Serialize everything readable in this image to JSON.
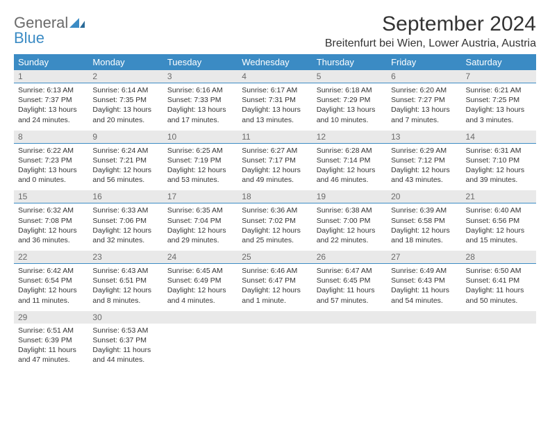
{
  "logo": {
    "part1": "General",
    "part2": "Blue"
  },
  "title": "September 2024",
  "subtitle": "Breitenfurt bei Wien, Lower Austria, Austria",
  "colors": {
    "header_bg": "#3b8bc4",
    "header_fg": "#ffffff",
    "daynum_bg": "#e9e9e9",
    "daynum_fg": "#6a6a6a",
    "row_border": "#3b8bc4",
    "body_text": "#333333",
    "page_bg": "#ffffff"
  },
  "typography": {
    "title_fontsize": 30,
    "subtitle_fontsize": 16,
    "dayhead_fontsize": 13,
    "daynum_fontsize": 12,
    "body_fontsize": 10.5
  },
  "day_headers": [
    "Sunday",
    "Monday",
    "Tuesday",
    "Wednesday",
    "Thursday",
    "Friday",
    "Saturday"
  ],
  "weeks": [
    {
      "nums": [
        "1",
        "2",
        "3",
        "4",
        "5",
        "6",
        "7"
      ],
      "cells": [
        {
          "sunrise": "Sunrise: 6:13 AM",
          "sunset": "Sunset: 7:37 PM",
          "dl1": "Daylight: 13 hours",
          "dl2": "and 24 minutes."
        },
        {
          "sunrise": "Sunrise: 6:14 AM",
          "sunset": "Sunset: 7:35 PM",
          "dl1": "Daylight: 13 hours",
          "dl2": "and 20 minutes."
        },
        {
          "sunrise": "Sunrise: 6:16 AM",
          "sunset": "Sunset: 7:33 PM",
          "dl1": "Daylight: 13 hours",
          "dl2": "and 17 minutes."
        },
        {
          "sunrise": "Sunrise: 6:17 AM",
          "sunset": "Sunset: 7:31 PM",
          "dl1": "Daylight: 13 hours",
          "dl2": "and 13 minutes."
        },
        {
          "sunrise": "Sunrise: 6:18 AM",
          "sunset": "Sunset: 7:29 PM",
          "dl1": "Daylight: 13 hours",
          "dl2": "and 10 minutes."
        },
        {
          "sunrise": "Sunrise: 6:20 AM",
          "sunset": "Sunset: 7:27 PM",
          "dl1": "Daylight: 13 hours",
          "dl2": "and 7 minutes."
        },
        {
          "sunrise": "Sunrise: 6:21 AM",
          "sunset": "Sunset: 7:25 PM",
          "dl1": "Daylight: 13 hours",
          "dl2": "and 3 minutes."
        }
      ]
    },
    {
      "nums": [
        "8",
        "9",
        "10",
        "11",
        "12",
        "13",
        "14"
      ],
      "cells": [
        {
          "sunrise": "Sunrise: 6:22 AM",
          "sunset": "Sunset: 7:23 PM",
          "dl1": "Daylight: 13 hours",
          "dl2": "and 0 minutes."
        },
        {
          "sunrise": "Sunrise: 6:24 AM",
          "sunset": "Sunset: 7:21 PM",
          "dl1": "Daylight: 12 hours",
          "dl2": "and 56 minutes."
        },
        {
          "sunrise": "Sunrise: 6:25 AM",
          "sunset": "Sunset: 7:19 PM",
          "dl1": "Daylight: 12 hours",
          "dl2": "and 53 minutes."
        },
        {
          "sunrise": "Sunrise: 6:27 AM",
          "sunset": "Sunset: 7:17 PM",
          "dl1": "Daylight: 12 hours",
          "dl2": "and 49 minutes."
        },
        {
          "sunrise": "Sunrise: 6:28 AM",
          "sunset": "Sunset: 7:14 PM",
          "dl1": "Daylight: 12 hours",
          "dl2": "and 46 minutes."
        },
        {
          "sunrise": "Sunrise: 6:29 AM",
          "sunset": "Sunset: 7:12 PM",
          "dl1": "Daylight: 12 hours",
          "dl2": "and 43 minutes."
        },
        {
          "sunrise": "Sunrise: 6:31 AM",
          "sunset": "Sunset: 7:10 PM",
          "dl1": "Daylight: 12 hours",
          "dl2": "and 39 minutes."
        }
      ]
    },
    {
      "nums": [
        "15",
        "16",
        "17",
        "18",
        "19",
        "20",
        "21"
      ],
      "cells": [
        {
          "sunrise": "Sunrise: 6:32 AM",
          "sunset": "Sunset: 7:08 PM",
          "dl1": "Daylight: 12 hours",
          "dl2": "and 36 minutes."
        },
        {
          "sunrise": "Sunrise: 6:33 AM",
          "sunset": "Sunset: 7:06 PM",
          "dl1": "Daylight: 12 hours",
          "dl2": "and 32 minutes."
        },
        {
          "sunrise": "Sunrise: 6:35 AM",
          "sunset": "Sunset: 7:04 PM",
          "dl1": "Daylight: 12 hours",
          "dl2": "and 29 minutes."
        },
        {
          "sunrise": "Sunrise: 6:36 AM",
          "sunset": "Sunset: 7:02 PM",
          "dl1": "Daylight: 12 hours",
          "dl2": "and 25 minutes."
        },
        {
          "sunrise": "Sunrise: 6:38 AM",
          "sunset": "Sunset: 7:00 PM",
          "dl1": "Daylight: 12 hours",
          "dl2": "and 22 minutes."
        },
        {
          "sunrise": "Sunrise: 6:39 AM",
          "sunset": "Sunset: 6:58 PM",
          "dl1": "Daylight: 12 hours",
          "dl2": "and 18 minutes."
        },
        {
          "sunrise": "Sunrise: 6:40 AM",
          "sunset": "Sunset: 6:56 PM",
          "dl1": "Daylight: 12 hours",
          "dl2": "and 15 minutes."
        }
      ]
    },
    {
      "nums": [
        "22",
        "23",
        "24",
        "25",
        "26",
        "27",
        "28"
      ],
      "cells": [
        {
          "sunrise": "Sunrise: 6:42 AM",
          "sunset": "Sunset: 6:54 PM",
          "dl1": "Daylight: 12 hours",
          "dl2": "and 11 minutes."
        },
        {
          "sunrise": "Sunrise: 6:43 AM",
          "sunset": "Sunset: 6:51 PM",
          "dl1": "Daylight: 12 hours",
          "dl2": "and 8 minutes."
        },
        {
          "sunrise": "Sunrise: 6:45 AM",
          "sunset": "Sunset: 6:49 PM",
          "dl1": "Daylight: 12 hours",
          "dl2": "and 4 minutes."
        },
        {
          "sunrise": "Sunrise: 6:46 AM",
          "sunset": "Sunset: 6:47 PM",
          "dl1": "Daylight: 12 hours",
          "dl2": "and 1 minute."
        },
        {
          "sunrise": "Sunrise: 6:47 AM",
          "sunset": "Sunset: 6:45 PM",
          "dl1": "Daylight: 11 hours",
          "dl2": "and 57 minutes."
        },
        {
          "sunrise": "Sunrise: 6:49 AM",
          "sunset": "Sunset: 6:43 PM",
          "dl1": "Daylight: 11 hours",
          "dl2": "and 54 minutes."
        },
        {
          "sunrise": "Sunrise: 6:50 AM",
          "sunset": "Sunset: 6:41 PM",
          "dl1": "Daylight: 11 hours",
          "dl2": "and 50 minutes."
        }
      ]
    },
    {
      "nums": [
        "29",
        "30",
        "",
        "",
        "",
        "",
        ""
      ],
      "cells": [
        {
          "sunrise": "Sunrise: 6:51 AM",
          "sunset": "Sunset: 6:39 PM",
          "dl1": "Daylight: 11 hours",
          "dl2": "and 47 minutes."
        },
        {
          "sunrise": "Sunrise: 6:53 AM",
          "sunset": "Sunset: 6:37 PM",
          "dl1": "Daylight: 11 hours",
          "dl2": "and 44 minutes."
        },
        null,
        null,
        null,
        null,
        null
      ],
      "no_border": true
    }
  ]
}
